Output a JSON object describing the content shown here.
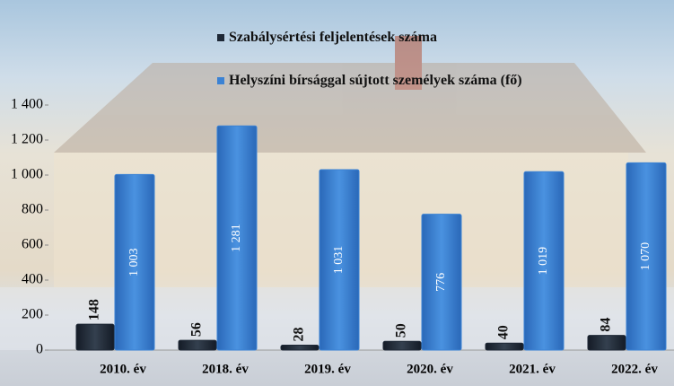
{
  "chart_data": {
    "type": "bar",
    "categories": [
      "2010. év",
      "2018. év",
      "2019. év",
      "2020. év",
      "2021. év",
      "2022. év"
    ],
    "series": [
      {
        "name": "Szabálysértési feljelentések száma",
        "color": "#1e2836",
        "values": [
          148,
          56,
          28,
          50,
          40,
          84
        ]
      },
      {
        "name": "Helyszíni bírsággal sújtott személyek száma (fő)",
        "color": "#3b82d4",
        "values": [
          1003,
          1281,
          1031,
          776,
          1019,
          1070
        ],
        "value_labels": [
          "1 003",
          "1 281",
          "1 031",
          "776",
          "1 019",
          "1 070"
        ]
      }
    ],
    "ylim": [
      0,
      1400
    ],
    "yticks": [
      0,
      200,
      400,
      600,
      800,
      {
        "value": 1000,
        "label": "1 000"
      },
      {
        "value": 1200,
        "label": "1 200"
      },
      {
        "value": 1400,
        "label": "1 400"
      }
    ],
    "legend": "top"
  }
}
